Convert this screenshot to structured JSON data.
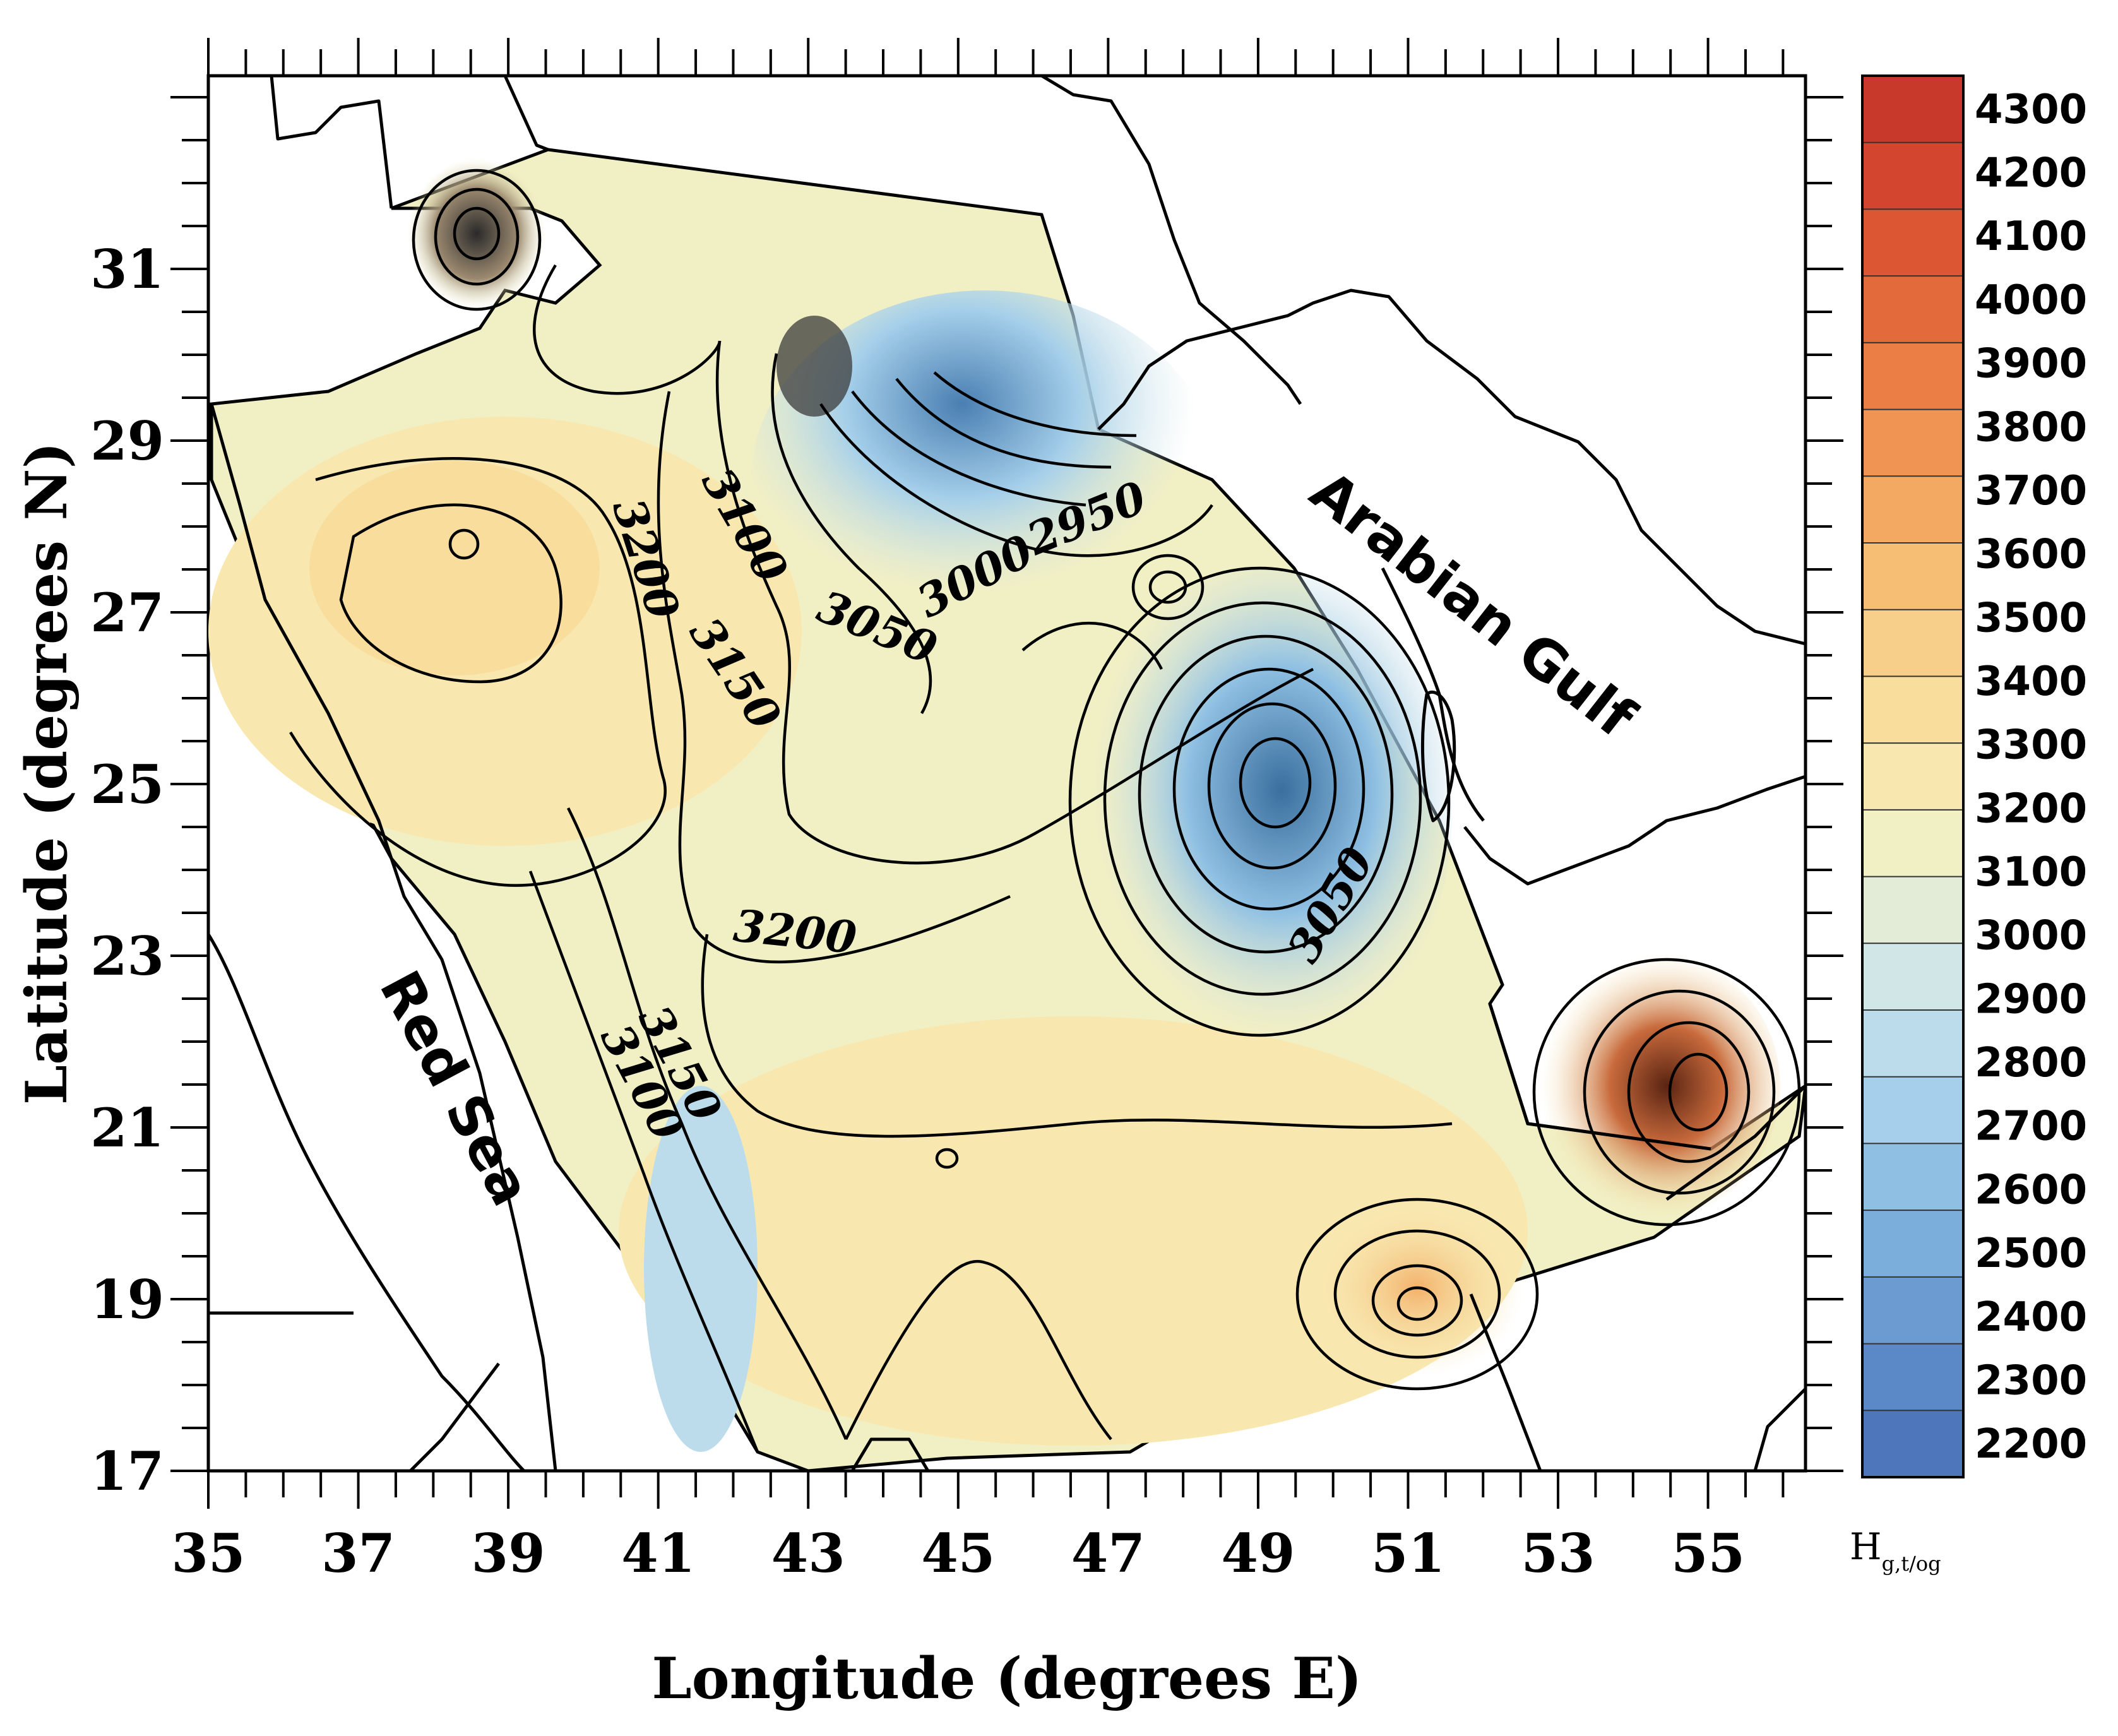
{
  "map": {
    "x_axis_label": "Longitude (degrees E)",
    "y_axis_label": "Latitude (degrees N)",
    "x_ticks": [
      "35",
      "37",
      "39",
      "41",
      "43",
      "45",
      "47",
      "49",
      "51",
      "53",
      "55"
    ],
    "y_ticks": [
      "31",
      "29",
      "27",
      "25",
      "23",
      "21",
      "19",
      "17"
    ],
    "water_labels": {
      "gulf": "Arabian Gulf",
      "red_sea": "Red Sea"
    },
    "contour_labels": {
      "c3200a": "3200",
      "c3100a": "3100",
      "c3150a": "3150",
      "c3050a": "3050",
      "c3000": "3000",
      "c2950": "2950",
      "c3200b": "3200",
      "c3050b": "3050",
      "c3150b": "3150",
      "c3100b": "3100"
    },
    "colorbar": {
      "labels": [
        "4300",
        "4200",
        "4100",
        "4000",
        "3900",
        "3800",
        "3700",
        "3600",
        "3500",
        "3400",
        "3300",
        "3200",
        "3100",
        "3000",
        "2900",
        "2800",
        "2700",
        "2600",
        "2500",
        "2400",
        "2300",
        "2200"
      ],
      "title_main": "H",
      "title_sub": "g,t/og",
      "colors": [
        "#c9392b",
        "#d4452f",
        "#dc5634",
        "#e36a3b",
        "#ea7e45",
        "#ef9452",
        "#f3a962",
        "#f6bd75",
        "#f8cf8a",
        "#f9dd9c",
        "#f8e8b0",
        "#f1efc4",
        "#e2ecd7",
        "#d1e6e7",
        "#bcdcec",
        "#a5cfea",
        "#8fc0e3",
        "#7caedb",
        "#6b9bd0",
        "#5b88c6",
        "#4d76bb"
      ]
    }
  }
}
